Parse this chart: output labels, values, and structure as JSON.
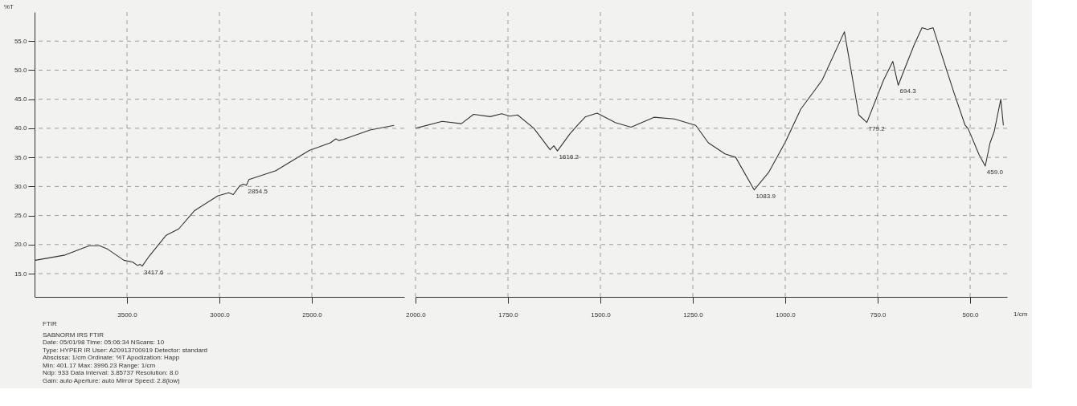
{
  "chart_data": [
    {
      "type": "line",
      "ylabel": "%T",
      "color": "#333333",
      "grid": true,
      "line_style": "solid",
      "marker": "none",
      "x": [
        3996,
        3835,
        3704,
        3648,
        3604,
        3517,
        3470,
        3443,
        3430,
        3417.6,
        3380,
        3288,
        3220,
        3136,
        3008,
        2950,
        2925,
        2890,
        2870,
        2854.5,
        2840,
        2695,
        2514,
        2400,
        2370,
        2355,
        2330,
        2185,
        2055
      ],
      "values": [
        17.3,
        18.2,
        19.8,
        19.8,
        19.2,
        17.3,
        17.0,
        16.4,
        16.6,
        16.3,
        18.0,
        21.6,
        22.7,
        25.8,
        28.4,
        28.9,
        28.6,
        30.1,
        30.4,
        30.2,
        31.2,
        32.7,
        36.2,
        37.5,
        38.2,
        37.9,
        38.1,
        39.7,
        40.5
      ],
      "xlim": [
        4000,
        2000
      ],
      "xticks": [
        {
          "value": 3500,
          "label": "3500.0"
        },
        {
          "value": 3000,
          "label": "3000.0"
        },
        {
          "value": 2500,
          "label": "2500.0"
        }
      ],
      "ylim": [
        11,
        60
      ],
      "yticks": [
        {
          "value": 15,
          "label": "15.0"
        },
        {
          "value": 20,
          "label": "20.0"
        },
        {
          "value": 25,
          "label": "25.0"
        },
        {
          "value": 30,
          "label": "30.0"
        },
        {
          "value": 35,
          "label": "35.0"
        },
        {
          "value": 40,
          "label": "40.0"
        },
        {
          "value": 45,
          "label": "45.0"
        },
        {
          "value": 50,
          "label": "50.0"
        },
        {
          "value": 55,
          "label": "55.0"
        }
      ],
      "annotations": [
        {
          "text": "3417.6",
          "x": 3417.6,
          "y": 16.3
        },
        {
          "text": "2854.5",
          "x": 2854.5,
          "y": 30.2
        },
        "FTIR",
        "SABNORM IRS   FTIR",
        "Date: 05/01/98     Time: 05:06:34     NScans: 10",
        "Type: HYPER IR     User: A20913700919     Detector: standard",
        "Abscissa: 1/cm     Ordinate: %T     Apodization: Happ",
        "Min: 401.17     Max: 3996.23     Range: 1/cm",
        "Ndp: 933     Data Interval: 3.85737     Resolution: 8.0",
        "Gain: auto     Aperture: auto     Mirror Speed: 2.8(low)"
      ]
    },
    {
      "type": "line",
      "xlabel": "1/cm",
      "color": "#333333",
      "grid": true,
      "line_style": "solid",
      "marker": "none",
      "tick_labels": "x",
      "x": [
        2000,
        1928,
        1876,
        1843,
        1798,
        1767,
        1745,
        1724,
        1680,
        1636,
        1626,
        1616.2,
        1583,
        1561,
        1540,
        1509,
        1460,
        1417,
        1355,
        1300,
        1242,
        1208,
        1163,
        1134,
        1083.9,
        1045,
        1000,
        958,
        900,
        840,
        801,
        779.2,
        734,
        709,
        694.3,
        673,
        651,
        630,
        615,
        600,
        568,
        543,
        514,
        505,
        476,
        459,
        446,
        435,
        417,
        410
      ],
      "values": [
        40.0,
        41.2,
        40.8,
        42.4,
        42.0,
        42.5,
        42.1,
        42.3,
        40.0,
        36.3,
        37.0,
        36.1,
        39.0,
        40.6,
        42.0,
        42.6,
        41.0,
        40.2,
        41.9,
        41.6,
        40.5,
        37.5,
        35.6,
        35.0,
        29.4,
        32.4,
        37.6,
        43.3,
        48.3,
        56.6,
        42.3,
        41.0,
        48.3,
        51.5,
        47.4,
        50.9,
        54.4,
        57.3,
        57.0,
        57.3,
        50.9,
        46.0,
        40.6,
        39.9,
        35.5,
        33.5,
        37.5,
        39.4,
        45.0,
        40.5
      ],
      "xlim": [
        2000,
        400
      ],
      "xticks": [
        {
          "value": 2000,
          "label": "2000.0"
        },
        {
          "value": 1750,
          "label": "1750.0"
        },
        {
          "value": 1500,
          "label": "1500.0"
        },
        {
          "value": 1250,
          "label": "1250.0"
        },
        {
          "value": 1000,
          "label": "1000.0"
        },
        {
          "value": 750,
          "label": "750.0"
        },
        {
          "value": 500,
          "label": "500.0"
        }
      ],
      "ylim": [
        11,
        60
      ],
      "yticks": [
        {
          "value": 15,
          "label": null
        },
        {
          "value": 20,
          "label": null
        },
        {
          "value": 25,
          "label": null
        },
        {
          "value": 30,
          "label": null
        },
        {
          "value": 35,
          "label": null
        },
        {
          "value": 40,
          "label": null
        },
        {
          "value": 45,
          "label": null
        },
        {
          "value": 50,
          "label": null
        },
        {
          "value": 55,
          "label": null
        }
      ],
      "annotations": [
        {
          "text": "1616.2",
          "x": 1616.2,
          "y": 36.1
        },
        {
          "text": "1083.9",
          "x": 1083.9,
          "y": 29.4
        },
        {
          "text": "779.2",
          "x": 779.2,
          "y": 41.0
        },
        {
          "text": "694.3",
          "x": 694.3,
          "y": 47.4
        },
        {
          "text": "459.0",
          "x": 459.0,
          "y": 33.5
        }
      ]
    }
  ]
}
